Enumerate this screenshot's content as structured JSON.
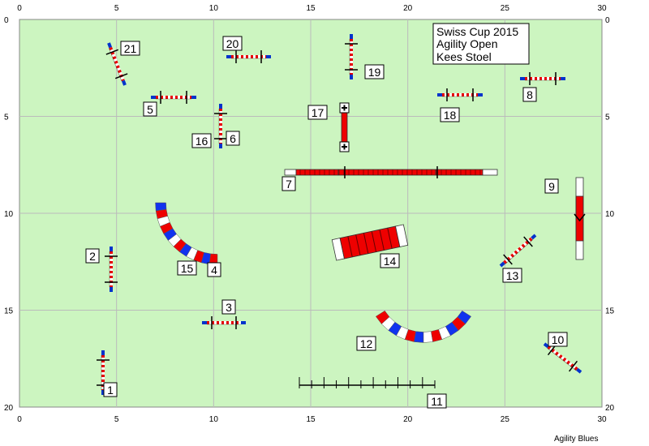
{
  "title_lines": [
    "Swiss Cup 2015",
    "Agility Open",
    "Kees Stoel"
  ],
  "footer": "Agility Blues",
  "field": {
    "width_m": 30,
    "height_m": 20,
    "x_ticks": [
      0,
      5,
      10,
      15,
      20,
      25,
      30
    ],
    "y_ticks": [
      0,
      5,
      10,
      15,
      20
    ]
  },
  "colors": {
    "field_bg": "#ccf5c0",
    "grid": "#bbbbbb",
    "jump_bar_red": "#e60000",
    "jump_wing_blue": "#0033cc",
    "tunnel_red": "#ee0000",
    "tunnel_blue": "#1133ee",
    "tunnel_white": "#ffffff"
  },
  "obstacles": [
    {
      "number": "1",
      "kind": "jump",
      "icon": "jump-icon"
    },
    {
      "number": "2",
      "kind": "jump",
      "icon": "jump-icon"
    },
    {
      "number": "3",
      "kind": "jump",
      "icon": "jump-icon"
    },
    {
      "number": "4",
      "kind": "tunnel",
      "icon": "tunnel-icon"
    },
    {
      "number": "5",
      "kind": "jump",
      "icon": "jump-icon"
    },
    {
      "number": "6",
      "kind": "jump",
      "icon": "jump-icon"
    },
    {
      "number": "7",
      "kind": "dogwalk",
      "icon": "dogwalk-icon"
    },
    {
      "number": "8",
      "kind": "jump",
      "icon": "jump-icon"
    },
    {
      "number": "9",
      "kind": "a-frame",
      "icon": "a-frame-icon"
    },
    {
      "number": "10",
      "kind": "jump",
      "icon": "jump-icon"
    },
    {
      "number": "11",
      "kind": "weave poles",
      "icon": "weave-poles-icon"
    },
    {
      "number": "12",
      "kind": "tunnel",
      "icon": "tunnel-icon"
    },
    {
      "number": "13",
      "kind": "jump",
      "icon": "jump-icon"
    },
    {
      "number": "14",
      "kind": "tunnel",
      "icon": "tunnel-icon"
    },
    {
      "number": "15",
      "kind": "tunnel",
      "icon": "tunnel-icon"
    },
    {
      "number": "16",
      "kind": "jump",
      "icon": "jump-icon"
    },
    {
      "number": "17",
      "kind": "seesaw",
      "icon": "seesaw-icon"
    },
    {
      "number": "18",
      "kind": "jump",
      "icon": "jump-icon"
    },
    {
      "number": "19",
      "kind": "jump",
      "icon": "jump-icon"
    },
    {
      "number": "20",
      "kind": "jump",
      "icon": "jump-icon"
    },
    {
      "number": "21",
      "kind": "jump",
      "icon": "jump-icon"
    }
  ]
}
